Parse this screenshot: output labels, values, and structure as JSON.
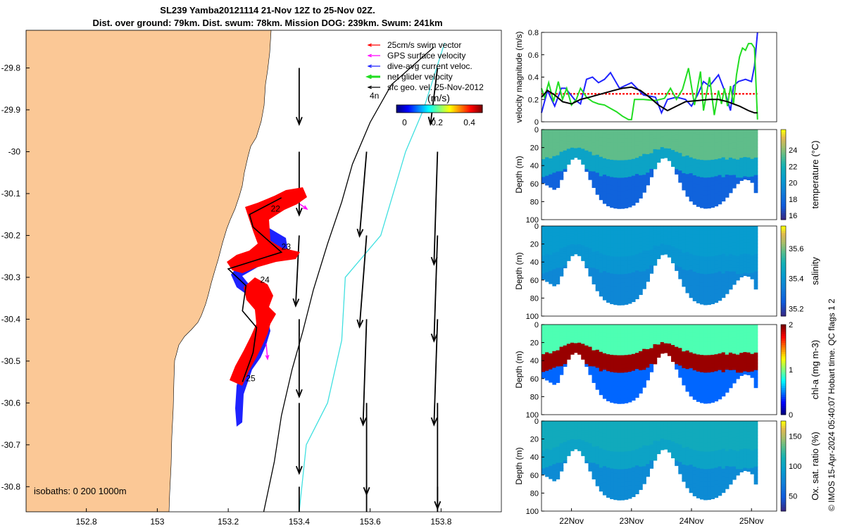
{
  "title_line1": "SL239 Yamba20121114 21-Nov 12Z to 25-Nov 02Z.",
  "title_line2": "Dist. over ground: 79km. Dist. swum: 78km. Mission DOG: 239km. Swum: 241km",
  "stamp": "© IMOS 15-Apr-2024 05:40:07 Hobart time. QC flags 1  2",
  "colors": {
    "land": "#fbc896",
    "swim": "#ff0000",
    "gps": "#ff00ff",
    "dive": "#1e22ff",
    "net": "#22dd22",
    "geo": "#000000",
    "isobath200": "#000000",
    "isobath1000": "#40e0e0"
  },
  "chart_data": [
    {
      "type": "map",
      "xticks": [
        "152.8",
        "153",
        "153.2",
        "153.4",
        "153.6",
        "153.8"
      ],
      "yticks": [
        "-29.8",
        "-29.9",
        "-30",
        "-30.1",
        "-30.2",
        "-30.3",
        "-30.4",
        "-30.5",
        "-30.6",
        "-30.7",
        "-30.8"
      ],
      "xlim": [
        152.63,
        153.97
      ],
      "ylim": [
        -30.86,
        -29.71
      ],
      "legend": {
        "placement": "top-right",
        "items": [
          {
            "label": "25cm/s swim vector",
            "color": "#ff0000"
          },
          {
            "label": "GPS surface velocity",
            "color": "#ff00ff"
          },
          {
            "label": "dive-avg current veloc.",
            "color": "#1e22ff"
          },
          {
            "label": "net glider velocity",
            "color": "#22dd22"
          },
          {
            "label": "sfc geo. vel. 25-Nov-2012",
            "color": "#000000"
          }
        ]
      },
      "colorbar": {
        "label": "(m/s)",
        "ticks": [
          "0",
          "0.2",
          "0.4"
        ],
        "lim": [
          -0.05,
          0.48
        ]
      },
      "isobaths_label": "isobaths: 0   200  1000m",
      "day_labels": [
        {
          "label": "22",
          "lon": 153.32,
          "lat": -30.143
        },
        {
          "label": "23",
          "lon": 153.35,
          "lat": -30.234
        },
        {
          "label": "24",
          "lon": 153.29,
          "lat": -30.313
        },
        {
          "label": "25",
          "lon": 153.25,
          "lat": -30.548
        }
      ],
      "corner_label": "4n",
      "glider_track": [
        [
          153.35,
          -30.11
        ],
        [
          153.26,
          -30.15
        ],
        [
          153.27,
          -30.18
        ],
        [
          153.35,
          -30.24
        ],
        [
          153.2,
          -30.28
        ],
        [
          153.25,
          -30.32
        ],
        [
          153.24,
          -30.38
        ],
        [
          153.28,
          -30.42
        ],
        [
          153.27,
          -30.48
        ],
        [
          153.24,
          -30.55
        ]
      ],
      "isobath_200": [
        [
          153.3,
          -30.86
        ],
        [
          153.33,
          -30.74
        ],
        [
          153.35,
          -30.63
        ],
        [
          153.38,
          -30.52
        ],
        [
          153.41,
          -30.43
        ],
        [
          153.44,
          -30.33
        ],
        [
          153.48,
          -30.22
        ],
        [
          153.52,
          -30.12
        ],
        [
          153.55,
          -30.03
        ],
        [
          153.6,
          -29.93
        ],
        [
          153.66,
          -29.84
        ],
        [
          153.78,
          -29.75
        ]
      ],
      "isobath_1000": [
        [
          153.4,
          -30.86
        ],
        [
          153.42,
          -30.7
        ],
        [
          153.48,
          -30.6
        ],
        [
          153.52,
          -30.45
        ],
        [
          153.53,
          -30.3
        ],
        [
          153.63,
          -30.2
        ],
        [
          153.7,
          -30.0
        ],
        [
          153.75,
          -29.9
        ],
        [
          153.81,
          -29.74
        ]
      ],
      "geo_vectors": [
        {
          "lon": 153.4,
          "lat": -29.8,
          "u": 0.0,
          "v": -0.16
        },
        {
          "lon": 153.4,
          "lat": -30.0,
          "u": 0.0,
          "v": -0.18
        },
        {
          "lon": 153.4,
          "lat": -30.2,
          "u": -0.01,
          "v": -0.2
        },
        {
          "lon": 153.4,
          "lat": -30.4,
          "u": 0.0,
          "v": -0.22
        },
        {
          "lon": 153.4,
          "lat": -30.6,
          "u": 0.0,
          "v": -0.2
        },
        {
          "lon": 153.4,
          "lat": -30.8,
          "u": 0.0,
          "v": -0.18
        },
        {
          "lon": 153.59,
          "lat": -30.0,
          "u": -0.02,
          "v": -0.24
        },
        {
          "lon": 153.59,
          "lat": -30.2,
          "u": -0.02,
          "v": -0.26
        },
        {
          "lon": 153.59,
          "lat": -30.4,
          "u": -0.01,
          "v": -0.3
        },
        {
          "lon": 153.59,
          "lat": -30.6,
          "u": 0.0,
          "v": -0.26
        },
        {
          "lon": 153.59,
          "lat": -30.8,
          "u": 0.0,
          "v": -0.14
        },
        {
          "lon": 153.79,
          "lat": -29.8,
          "u": -0.02,
          "v": -0.16
        },
        {
          "lon": 153.79,
          "lat": -30.0,
          "u": -0.01,
          "v": -0.32
        },
        {
          "lon": 153.79,
          "lat": -30.2,
          "u": -0.01,
          "v": -0.3
        },
        {
          "lon": 153.79,
          "lat": -30.4,
          "u": -0.01,
          "v": -0.3
        },
        {
          "lon": 153.79,
          "lat": -30.6,
          "u": 0.0,
          "v": -0.3
        },
        {
          "lon": 153.79,
          "lat": -30.8,
          "u": 0.0,
          "v": -0.16
        }
      ]
    },
    {
      "type": "line",
      "ylabel": "velocity magnitude (m/s)",
      "ylim": [
        0,
        0.8
      ],
      "yticks": [
        "0",
        "0.2",
        "0.4",
        "0.6",
        "0.8"
      ],
      "xlim": [
        21.5,
        25.42
      ],
      "series": [
        {
          "color": "#ff0000",
          "x": [
            21.5,
            25.1
          ],
          "y": [
            0.25,
            0.25
          ]
        },
        {
          "color": "#1e22ff",
          "x": [
            21.5,
            21.6,
            21.72,
            21.83,
            21.9,
            22.05,
            22.15,
            22.25,
            22.35,
            22.45,
            22.55,
            22.65,
            22.8,
            23.0,
            23.2,
            23.4,
            23.5,
            23.6,
            23.75,
            23.9,
            24.0,
            24.1,
            24.2,
            24.3,
            24.45,
            24.55,
            24.65,
            24.7,
            24.78,
            24.9,
            25.0,
            25.05,
            25.1
          ],
          "y": [
            0.08,
            0.28,
            0.14,
            0.3,
            0.3,
            0.2,
            0.16,
            0.38,
            0.4,
            0.35,
            0.38,
            0.44,
            0.3,
            0.35,
            0.24,
            0.22,
            0.08,
            0.2,
            0.22,
            0.2,
            0.14,
            0.24,
            0.36,
            0.32,
            0.42,
            0.28,
            0.1,
            0.32,
            0.36,
            0.38,
            0.36,
            0.5,
            0.8
          ]
        },
        {
          "color": "#22dd22",
          "x": [
            21.5,
            21.55,
            21.62,
            21.7,
            21.78,
            21.85,
            21.92,
            22.0,
            22.08,
            22.15,
            22.25,
            22.35,
            22.45,
            22.55,
            22.65,
            22.75,
            22.85,
            22.95,
            23.0,
            23.05,
            23.2,
            23.4,
            23.55,
            23.65,
            23.75,
            23.85,
            23.95,
            24.05,
            24.15,
            24.2,
            24.3,
            24.38,
            24.45,
            24.5,
            24.55,
            24.6,
            24.65,
            24.7,
            24.75,
            24.8,
            24.85,
            24.9,
            24.95,
            25.0,
            25.05,
            25.1
          ],
          "y": [
            0.3,
            0.22,
            0.35,
            0.18,
            0.36,
            0.2,
            0.3,
            0.15,
            0.2,
            0.3,
            0.22,
            0.18,
            0.16,
            0.15,
            0.12,
            0.09,
            0.05,
            0.02,
            0.02,
            0.2,
            0.2,
            0.19,
            0.21,
            0.3,
            0.2,
            0.29,
            0.48,
            0.15,
            0.45,
            0.1,
            0.4,
            0.06,
            0.28,
            0.16,
            0.3,
            0.14,
            0.32,
            0.16,
            0.42,
            0.58,
            0.66,
            0.64,
            0.7,
            0.7,
            0.66,
            0.02
          ]
        },
        {
          "color": "#000000",
          "x": [
            21.5,
            21.6,
            21.72,
            21.85,
            22.0,
            22.15,
            22.3,
            22.5,
            22.7,
            22.85,
            23.0,
            23.15,
            23.3,
            23.45,
            23.6,
            23.75,
            23.9,
            24.1,
            24.3,
            24.45,
            24.6,
            24.8,
            24.95,
            25.05,
            25.1
          ],
          "y": [
            0.22,
            0.28,
            0.24,
            0.18,
            0.16,
            0.2,
            0.22,
            0.25,
            0.28,
            0.3,
            0.31,
            0.28,
            0.22,
            0.15,
            0.1,
            0.14,
            0.18,
            0.19,
            0.2,
            0.2,
            0.18,
            0.14,
            0.1,
            0.08,
            0.08
          ]
        }
      ]
    },
    {
      "type": "heatmap",
      "ylabel": "Depth (m)",
      "clabel": "temperature (°C)",
      "ylim": [
        0,
        100
      ],
      "yticks": [
        "0",
        "20",
        "40",
        "60",
        "80",
        "100"
      ],
      "clim": [
        15.5,
        26.5
      ],
      "cticks": [
        "16",
        "18",
        "20",
        "22",
        "24"
      ],
      "xlim": [
        21.5,
        25.42
      ],
      "surface_value": 23.5,
      "mid_value": 21.0,
      "deep_value": 17.5
    },
    {
      "type": "heatmap",
      "ylabel": "Depth (m)",
      "clabel": "salinity",
      "ylim": [
        0,
        100
      ],
      "yticks": [
        "0",
        "20",
        "40",
        "60",
        "80",
        "100"
      ],
      "clim": [
        35.15,
        35.75
      ],
      "cticks": [
        "35.2",
        "35.4",
        "35.6"
      ],
      "xlim": [
        21.5,
        25.42
      ],
      "surface_value": 35.42,
      "mid_value": 35.4,
      "deep_value": 35.36
    },
    {
      "type": "heatmap",
      "ylabel": "Depth (m)",
      "clabel": "chl-a (mg m-3)",
      "ylim": [
        0,
        100
      ],
      "yticks": [
        "0",
        "20",
        "40",
        "60",
        "80",
        "100"
      ],
      "clim": [
        0,
        2
      ],
      "cticks": [
        "0",
        "1",
        "2"
      ],
      "xlim": [
        21.5,
        25.42
      ],
      "surface_value": 0.9,
      "mid_value": 1.95,
      "deep_value": 0.45
    },
    {
      "type": "heatmap",
      "ylabel": "Depth (m)",
      "clabel": "Ox. sat. ratio (%)",
      "ylim": [
        0,
        100
      ],
      "yticks": [
        "0",
        "20",
        "40",
        "60",
        "80",
        "100"
      ],
      "clim": [
        25,
        175
      ],
      "cticks": [
        "50",
        "100",
        "150"
      ],
      "xlim": [
        21.5,
        25.42
      ],
      "xticks": [
        {
          "v": 22,
          "label": "22Nov"
        },
        {
          "v": 23,
          "label": "23Nov"
        },
        {
          "v": 24,
          "label": "24Nov"
        },
        {
          "v": 25,
          "label": "25Nov"
        }
      ],
      "surface_value": 108,
      "mid_value": 100,
      "deep_value": 80
    }
  ]
}
